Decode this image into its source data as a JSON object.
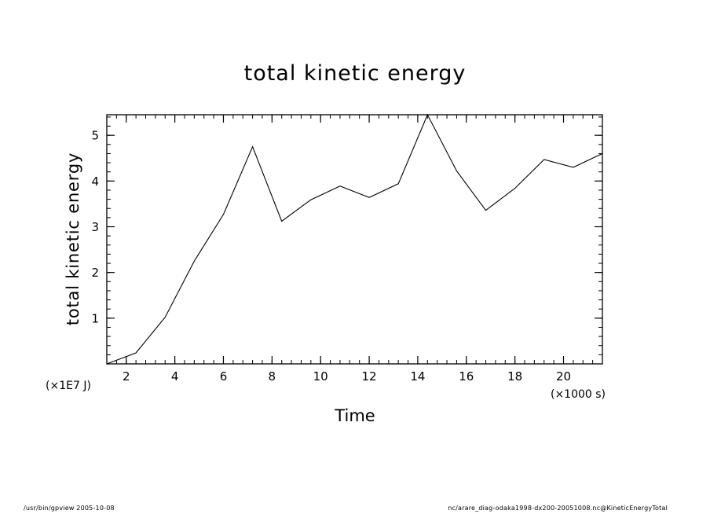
{
  "footer": {
    "left": "/usr/bin/gpview   2005-10-08",
    "right": "nc/arare_diag-odaka1998-dx200-20051008.nc@KineticEnergyTotal"
  },
  "chart_data": {
    "type": "line",
    "title": "total kinetic energy",
    "xlabel": "Time",
    "ylabel": "total kinetic energy",
    "x_unit": "(×1000 s)",
    "y_unit": "(×1E7 J)",
    "xlim": [
      1.2,
      21.6
    ],
    "ylim": [
      0.0,
      5.45
    ],
    "xticks": [
      2,
      4,
      6,
      8,
      10,
      12,
      14,
      16,
      18,
      20
    ],
    "yticks": [
      1,
      2,
      3,
      4,
      5
    ],
    "grid": false,
    "line_color": "#000000",
    "series": [
      {
        "x": [
          1.2,
          2.4,
          3.6,
          4.8,
          6.0,
          7.2,
          8.4,
          9.6,
          10.8,
          12.0,
          13.2,
          14.4,
          15.6,
          16.8,
          18.0,
          19.2,
          20.4,
          21.6
        ],
        "values": [
          0.0,
          0.24,
          1.02,
          2.25,
          3.27,
          4.75,
          3.12,
          3.59,
          3.89,
          3.64,
          3.94,
          5.45,
          4.22,
          3.36,
          3.84,
          4.47,
          4.3,
          4.6
        ]
      }
    ]
  }
}
